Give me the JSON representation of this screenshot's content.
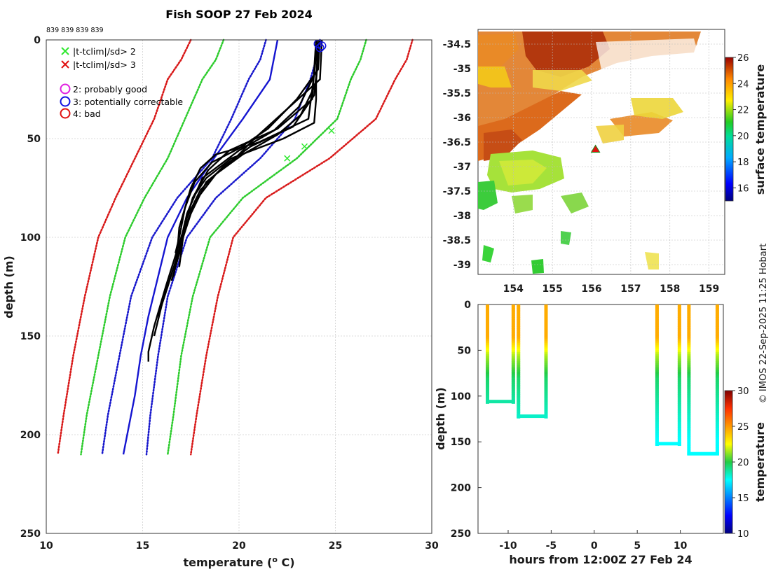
{
  "title": "Fish SOOP 27 Feb 2024",
  "probe_labels": "839 839 839 839",
  "legend": {
    "cross_green": "|t-tclim|/sd> 2",
    "cross_red": "|t-tclim|/sd> 3",
    "qc2": "2: probably good",
    "qc3": "3: potentially correctable",
    "qc4": "4: bad",
    "colors": {
      "green": "#2ee82e",
      "red": "#e01010",
      "magenta": "#e020e0",
      "blue": "#1010e0"
    }
  },
  "credit": "© IMOS 22-Sep-2025 11:25 Hobart",
  "chart_data": [
    {
      "type": "line",
      "name": "profile",
      "xlabel": "temperature (",
      "xlabel_sup": "o",
      "xlabel_tail": " C)",
      "ylabel": "depth (m)",
      "xlim": [
        10,
        30
      ],
      "ylim": [
        0,
        250
      ],
      "y_reversed": true,
      "xticks": [
        10,
        15,
        20,
        25,
        30
      ],
      "yticks": [
        0,
        50,
        100,
        150,
        200,
        250
      ],
      "grid": true,
      "climatology": {
        "depths": [
          0,
          10,
          20,
          40,
          60,
          80,
          100,
          130,
          160,
          190,
          210
        ],
        "series": [
          {
            "name": "clim -3sd",
            "color": "#d81a1a",
            "values": [
              17.5,
              17.0,
              16.3,
              15.6,
              14.6,
              13.6,
              12.7,
              12.0,
              11.4,
              10.9,
              10.6
            ]
          },
          {
            "name": "clim -2sd",
            "color": "#2ecc2e",
            "values": [
              19.2,
              18.8,
              18.1,
              17.2,
              16.3,
              15.1,
              14.1,
              13.3,
              12.7,
              12.1,
              11.8
            ]
          },
          {
            "name": "clim -1sd",
            "color": "#1818cc",
            "values": [
              21.4,
              21.1,
              20.5,
              19.6,
              18.6,
              16.8,
              15.5,
              14.4,
              13.8,
              13.2,
              12.9
            ]
          },
          {
            "name": "clim +1sd",
            "color": "#1818cc",
            "values": [
              24.2,
              24.0,
              23.7,
              22.9,
              21.1,
              18.8,
              17.3,
              16.3,
              15.8,
              15.4,
              15.2
            ]
          },
          {
            "name": "clim +2sd",
            "color": "#2ecc2e",
            "values": [
              26.6,
              26.3,
              25.8,
              25.1,
              23.0,
              20.2,
              18.5,
              17.6,
              17.0,
              16.6,
              16.3
            ]
          },
          {
            "name": "clim +3sd",
            "color": "#d81a1a",
            "values": [
              29.0,
              28.7,
              28.1,
              27.1,
              24.7,
              21.4,
              19.7,
              18.9,
              18.3,
              17.8,
              17.5
            ]
          }
        ],
        "mean": {
          "name": "clim mean",
          "color": "#1515d0",
          "depths": [
            0,
            20,
            40,
            60,
            80,
            100,
            120,
            140,
            160,
            180,
            200,
            210
          ],
          "values": [
            22.0,
            21.6,
            20.2,
            18.7,
            17.3,
            16.3,
            15.8,
            15.3,
            14.9,
            14.6,
            14.2,
            14.0
          ]
        }
      },
      "profiles": [
        {
          "depths": [
            0,
            20,
            30,
            42,
            50,
            60,
            70,
            80,
            90,
            105,
            122
          ],
          "values": [
            24.2,
            24.0,
            24.0,
            23.9,
            22.3,
            19.6,
            18.3,
            17.6,
            17.3,
            17.0,
            16.5
          ]
        },
        {
          "depths": [
            0,
            25,
            40,
            52,
            58,
            65,
            75,
            85,
            95,
            107,
            120
          ],
          "values": [
            24.1,
            23.8,
            23.6,
            21.0,
            18.8,
            18.0,
            17.5,
            17.2,
            16.9,
            16.8,
            16.6
          ]
        },
        {
          "depths": [
            0,
            15,
            30,
            45,
            55,
            62,
            72,
            85,
            100,
            108
          ],
          "values": [
            24.2,
            24.1,
            23.0,
            21.5,
            20.0,
            18.6,
            17.7,
            17.2,
            16.9,
            16.7
          ]
        },
        {
          "depths": [
            0,
            30,
            45,
            56,
            66,
            80,
            100,
            125,
            145,
            158,
            163
          ],
          "values": [
            24.0,
            23.8,
            22.0,
            19.5,
            18.4,
            17.6,
            17.0,
            16.2,
            15.6,
            15.3,
            15.3
          ]
        },
        {
          "depths": [
            0,
            20,
            35,
            50,
            60,
            72,
            90,
            110,
            130,
            150
          ],
          "values": [
            24.3,
            24.2,
            22.5,
            20.8,
            19.8,
            18.3,
            17.4,
            16.8,
            16.1,
            15.6
          ]
        },
        {
          "depths": [
            0,
            22,
            38,
            48,
            58,
            68,
            82,
            100,
            115
          ],
          "values": [
            24.1,
            24.0,
            23.2,
            22.0,
            20.2,
            18.8,
            17.7,
            17.1,
            16.9
          ]
        },
        {
          "depths": [
            0,
            28,
            44,
            54,
            64,
            76,
            92,
            106,
            125,
            140
          ],
          "values": [
            24.2,
            23.9,
            22.8,
            20.6,
            19.2,
            18.0,
            17.2,
            16.9,
            16.3,
            15.8
          ]
        },
        {
          "depths": [
            0,
            18,
            34,
            46,
            56,
            70,
            88,
            106
          ],
          "values": [
            24.0,
            23.9,
            23.1,
            21.8,
            20.0,
            18.1,
            17.3,
            16.9
          ]
        }
      ],
      "flags": {
        "green_cross_temps": [
          24.8,
          23.4,
          22.5
        ],
        "green_cross_depths": [
          46,
          54,
          60
        ],
        "qc3_circle_temps": [
          24.1,
          24.3,
          24.2
        ],
        "qc3_circle_depths": [
          2,
          3,
          4
        ]
      }
    },
    {
      "type": "heatmap",
      "name": "sst_map",
      "xlim": [
        153.1,
        159.4
      ],
      "ylim": [
        -39.2,
        -34.2
      ],
      "xticks": [
        154,
        155,
        156,
        157,
        158,
        159
      ],
      "xtick_labels": [
        "154",
        "155",
        "156",
        "157",
        "158",
        "159"
      ],
      "yticks": [
        -34.5,
        -35,
        -35.5,
        -36,
        -36.5,
        -37,
        -37.5,
        -38,
        -38.5,
        -39
      ],
      "ytick_labels": [
        "-34.5",
        "-35",
        "-35.5",
        "-36",
        "-36.5",
        "-37",
        "-37.5",
        "-38",
        "-38.5",
        "-39"
      ],
      "colorbar": {
        "label": "surface temperature",
        "min": 15,
        "max": 26,
        "ticks": [
          16,
          18,
          20,
          22,
          24,
          26
        ],
        "tick_labels": [
          "16",
          "18",
          "20",
          "22",
          "24",
          "26"
        ]
      },
      "drop_location": {
        "lon": 156.1,
        "lat": -36.65
      }
    },
    {
      "type": "scatter",
      "name": "depth_time",
      "xlabel": "hours from 12:00Z 27 Feb 24",
      "ylabel": "depth (m)",
      "xlim": [
        -13.5,
        15
      ],
      "ylim": [
        0,
        250
      ],
      "y_reversed": true,
      "xticks": [
        -10,
        -5,
        0,
        5,
        10
      ],
      "xtick_labels": [
        "-10",
        "-5",
        "0",
        "5",
        "10"
      ],
      "yticks": [
        0,
        50,
        100,
        150,
        200,
        250
      ],
      "colorbar": {
        "label": "temperature",
        "min": 10,
        "max": 30,
        "ticks": [
          10,
          15,
          20,
          25,
          30
        ],
        "tick_labels": [
          "10",
          "15",
          "20",
          "25",
          "30"
        ]
      },
      "dives": [
        {
          "start": -12.4,
          "end": -9.4,
          "max_depth": 106
        },
        {
          "start": -8.8,
          "end": -5.6,
          "max_depth": 122
        },
        {
          "start": 7.3,
          "end": 9.9,
          "max_depth": 152
        },
        {
          "start": 11.0,
          "end": 14.3,
          "max_depth": 163
        }
      ]
    }
  ]
}
